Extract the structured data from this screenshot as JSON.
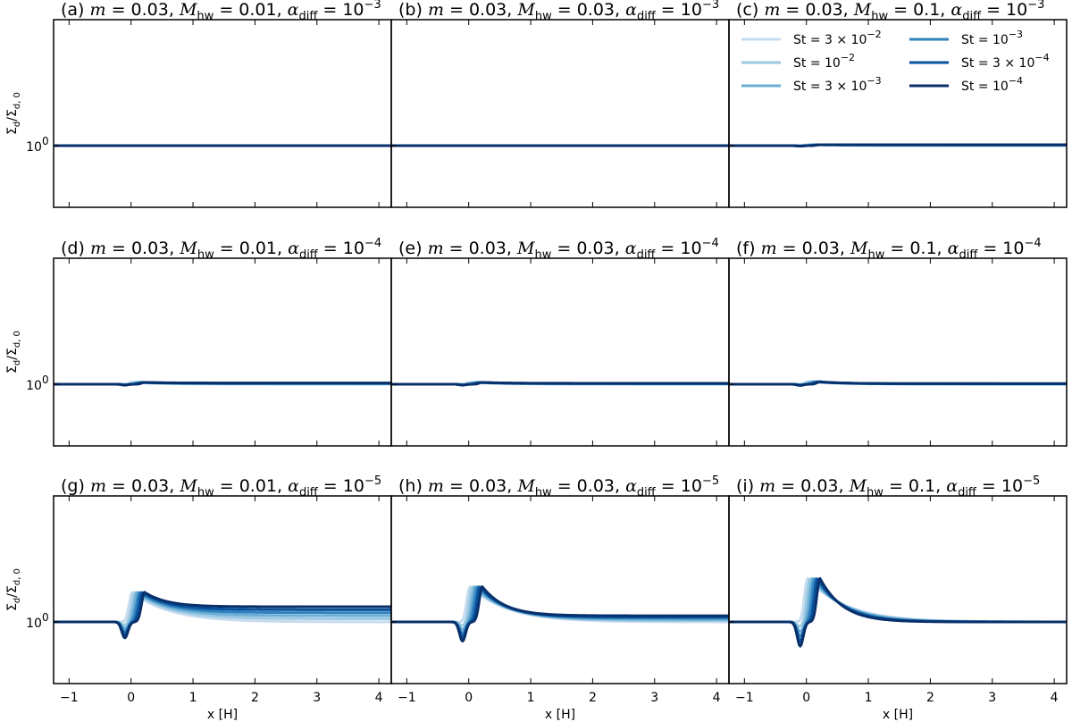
{
  "chart_data": {
    "type": "line",
    "ylabel": "Σd/Σd,0",
    "xlabel": "x [H]",
    "xlim": [
      -1.25,
      4.2
    ],
    "x_ticks": [
      -1,
      0,
      1,
      2,
      3,
      4
    ],
    "y_ticks": [
      {
        "value": 1,
        "label": "10^0"
      }
    ],
    "y_scale": "log",
    "ylim": [
      0.82,
      1.5
    ],
    "legend": {
      "panel": "c",
      "placement": "top-right",
      "entries": [
        {
          "label": "St = 3 × 10^-2",
          "color": "#c6dbef"
        },
        {
          "label": "St = 10^-2",
          "color": "#9ecae1"
        },
        {
          "label": "St = 3 × 10^-3",
          "color": "#6baed6"
        },
        {
          "label": "St = 10^-3",
          "color": "#3182bd"
        },
        {
          "label": "St = 3 × 10^-4",
          "color": "#08519c"
        },
        {
          "label": "St = 10^-4",
          "color": "#08306b"
        }
      ]
    },
    "panels": [
      {
        "id": "a",
        "title": "(a) m = 0.03, Mhw = 0.01, αdiff = 10^-3",
        "m": "0.03",
        "M_hw": "0.01",
        "alpha_diff": "10^-3",
        "peak_max": 1.0,
        "tail_max": 1.0
      },
      {
        "id": "b",
        "title": "(b) m = 0.03, Mhw = 0.03, αdiff = 10^-3",
        "m": "0.03",
        "M_hw": "0.03",
        "alpha_diff": "10^-3",
        "peak_max": 1.0,
        "tail_max": 1.0
      },
      {
        "id": "c",
        "title": "(c) m = 0.03, Mhw = 0.1, αdiff = 10^-3",
        "m": "0.03",
        "M_hw": "0.1",
        "alpha_diff": "10^-3",
        "peak_max": 1.003,
        "tail_max": 1.003
      },
      {
        "id": "d",
        "title": "(d) m = 0.03, Mhw = 0.01, αdiff = 10^-4",
        "m": "0.03",
        "M_hw": "0.01",
        "alpha_diff": "10^-4",
        "peak_max": 1.006,
        "tail_max": 1.004
      },
      {
        "id": "e",
        "title": "(e) m = 0.03, Mhw = 0.03, αdiff = 10^-4",
        "m": "0.03",
        "M_hw": "0.03",
        "alpha_diff": "10^-4",
        "peak_max": 1.006,
        "tail_max": 1.003
      },
      {
        "id": "f",
        "title": "(f) m = 0.03, Mhw = 0.1, αdiff = 10^-4",
        "m": "0.03",
        "M_hw": "0.1",
        "alpha_diff": "10^-4",
        "peak_max": 1.008,
        "tail_max": 1.002
      },
      {
        "id": "g",
        "title": "(g) m = 0.03, Mhw = 0.01, αdiff = 10^-5",
        "m": "0.03",
        "M_hw": "0.01",
        "alpha_diff": "10^-5",
        "peak_max": 1.1,
        "tail_max": 1.05
      },
      {
        "id": "h",
        "title": "(h) m = 0.03, Mhw = 0.03, αdiff = 10^-5",
        "m": "0.03",
        "M_hw": "0.03",
        "alpha_diff": "10^-5",
        "peak_max": 1.12,
        "tail_max": 1.02
      },
      {
        "id": "i",
        "title": "(i) m = 0.03, Mhw = 0.1, αdiff = 10^-5",
        "m": "0.03",
        "M_hw": "0.1",
        "alpha_diff": "10^-5",
        "peak_max": 1.15,
        "tail_max": 1.0
      }
    ]
  }
}
